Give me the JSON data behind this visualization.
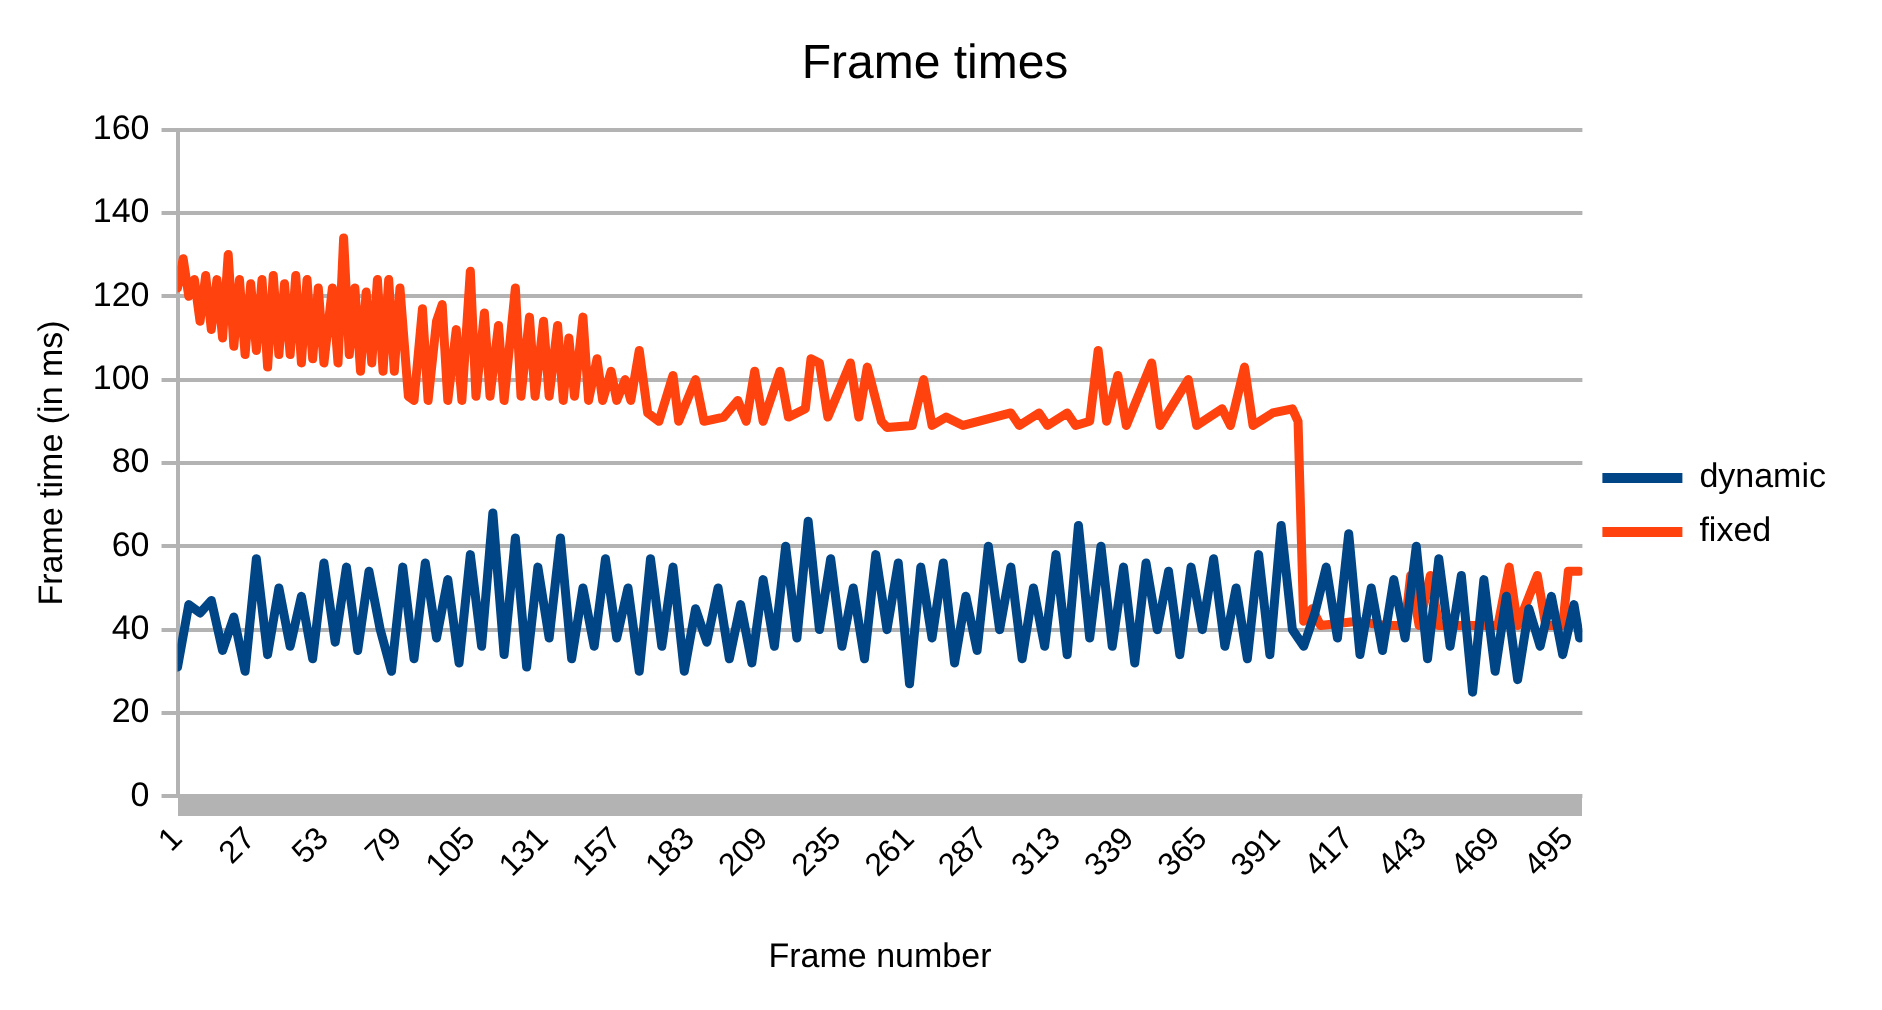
{
  "chart_data": {
    "type": "line",
    "title": "Frame times",
    "xlabel": "Frame number",
    "ylabel": "Frame time (in ms)",
    "xlim": [
      1,
      500
    ],
    "xticks": [
      1,
      27,
      53,
      79,
      105,
      131,
      157,
      183,
      209,
      235,
      261,
      287,
      313,
      339,
      365,
      391,
      417,
      443,
      469,
      495
    ],
    "ylim": [
      0,
      160
    ],
    "yticks": [
      0,
      20,
      40,
      60,
      80,
      100,
      120,
      140,
      160
    ],
    "grid": "y",
    "legend": "right",
    "marker": "none",
    "line_style": "solid",
    "series": [
      {
        "name": "dynamic",
        "color": "#004586",
        "x": [
          1,
          5,
          9,
          13,
          17,
          21,
          25,
          29,
          33,
          37,
          41,
          45,
          49,
          53,
          57,
          61,
          65,
          69,
          73,
          77,
          81,
          85,
          89,
          93,
          97,
          101,
          105,
          109,
          113,
          117,
          121,
          125,
          129,
          133,
          137,
          141,
          145,
          149,
          153,
          157,
          161,
          165,
          169,
          173,
          177,
          181,
          185,
          189,
          193,
          197,
          201,
          205,
          209,
          213,
          217,
          221,
          225,
          229,
          233,
          237,
          241,
          245,
          249,
          253,
          257,
          261,
          265,
          269,
          273,
          277,
          281,
          285,
          289,
          293,
          297,
          301,
          305,
          309,
          313,
          317,
          321,
          325,
          329,
          333,
          337,
          341,
          345,
          349,
          353,
          357,
          361,
          365,
          369,
          373,
          377,
          381,
          385,
          389,
          393,
          397,
          401,
          405,
          409,
          413,
          417,
          421,
          425,
          429,
          433,
          437,
          441,
          445,
          449,
          453,
          457,
          461,
          465,
          469,
          473,
          477,
          481,
          485,
          489,
          493,
          497,
          499
        ],
        "values": [
          31,
          46,
          44,
          47,
          35,
          43,
          30,
          57,
          34,
          50,
          36,
          48,
          33,
          56,
          37,
          55,
          35,
          54,
          40,
          30,
          55,
          33,
          56,
          38,
          52,
          32,
          58,
          36,
          68,
          34,
          62,
          31,
          55,
          38,
          62,
          33,
          50,
          36,
          57,
          38,
          50,
          30,
          57,
          36,
          55,
          30,
          45,
          37,
          50,
          33,
          46,
          32,
          52,
          36,
          60,
          38,
          66,
          40,
          57,
          36,
          50,
          33,
          58,
          40,
          56,
          27,
          55,
          38,
          56,
          32,
          48,
          35,
          60,
          40,
          55,
          33,
          50,
          36,
          58,
          34,
          65,
          38,
          60,
          36,
          55,
          32,
          56,
          40,
          54,
          34,
          55,
          40,
          57,
          36,
          50,
          33,
          58,
          34,
          65,
          40,
          36,
          44,
          55,
          38,
          63,
          34,
          50,
          35,
          52,
          38,
          60,
          33,
          57,
          36,
          53,
          25,
          52,
          30,
          48,
          28,
          45,
          36,
          48,
          34,
          46,
          38
        ]
      },
      {
        "name": "fixed",
        "color": "#ff420e",
        "x": [
          1,
          3,
          5,
          7,
          9,
          11,
          13,
          15,
          17,
          19,
          21,
          23,
          25,
          27,
          29,
          31,
          33,
          35,
          37,
          39,
          41,
          43,
          45,
          47,
          49,
          51,
          53,
          56,
          58,
          60,
          62,
          64,
          66,
          68,
          70,
          72,
          74,
          76,
          78,
          80,
          83,
          85,
          88,
          90,
          93,
          95,
          97,
          100,
          102,
          105,
          107,
          110,
          112,
          115,
          117,
          121,
          123,
          126,
          128,
          131,
          133,
          136,
          138,
          140,
          142,
          145,
          147,
          150,
          152,
          155,
          157,
          160,
          162,
          165,
          168,
          172,
          177,
          179,
          185,
          188,
          195,
          200,
          203,
          206,
          209,
          215,
          218,
          224,
          226,
          229,
          232,
          240,
          243,
          246,
          251,
          253,
          262,
          266,
          269,
          274,
          280,
          297,
          300,
          307,
          310,
          317,
          320,
          325,
          328,
          331,
          335,
          338,
          347,
          350,
          360,
          363,
          372,
          375,
          380,
          383,
          390,
          397,
          399,
          401,
          404,
          407,
          420,
          430,
          437,
          439,
          442,
          446,
          449,
          470,
          474,
          477,
          484,
          487,
          493,
          495,
          499
        ],
        "values": [
          122,
          129,
          120,
          124,
          114,
          125,
          112,
          124,
          110,
          130,
          108,
          124,
          106,
          123,
          107,
          124,
          103,
          125,
          106,
          123,
          106,
          125,
          104,
          124,
          105,
          122,
          104,
          122,
          104,
          134,
          106,
          122,
          102,
          121,
          104,
          124,
          102,
          124,
          102,
          122,
          96,
          95,
          117,
          95,
          114,
          118,
          95,
          112,
          95,
          126,
          96,
          116,
          96,
          113,
          95,
          122,
          96,
          115,
          96,
          114,
          96,
          113,
          95,
          110,
          96,
          115,
          95,
          105,
          95,
          102,
          95,
          100,
          95,
          107,
          92,
          90,
          101,
          90,
          100,
          90,
          91,
          95,
          90,
          102,
          90,
          102,
          91,
          93,
          105,
          104,
          91,
          104,
          91,
          103,
          90,
          88.5,
          89,
          100,
          89,
          91,
          89,
          92,
          89,
          92,
          89,
          92,
          89,
          90,
          107,
          90,
          101,
          89,
          104,
          89,
          100,
          89,
          93,
          89,
          103,
          89,
          92,
          93,
          90,
          42,
          45,
          41,
          42,
          41,
          41,
          53,
          41,
          53,
          41,
          41,
          55,
          41,
          53,
          41,
          41,
          54,
          54
        ]
      }
    ]
  }
}
